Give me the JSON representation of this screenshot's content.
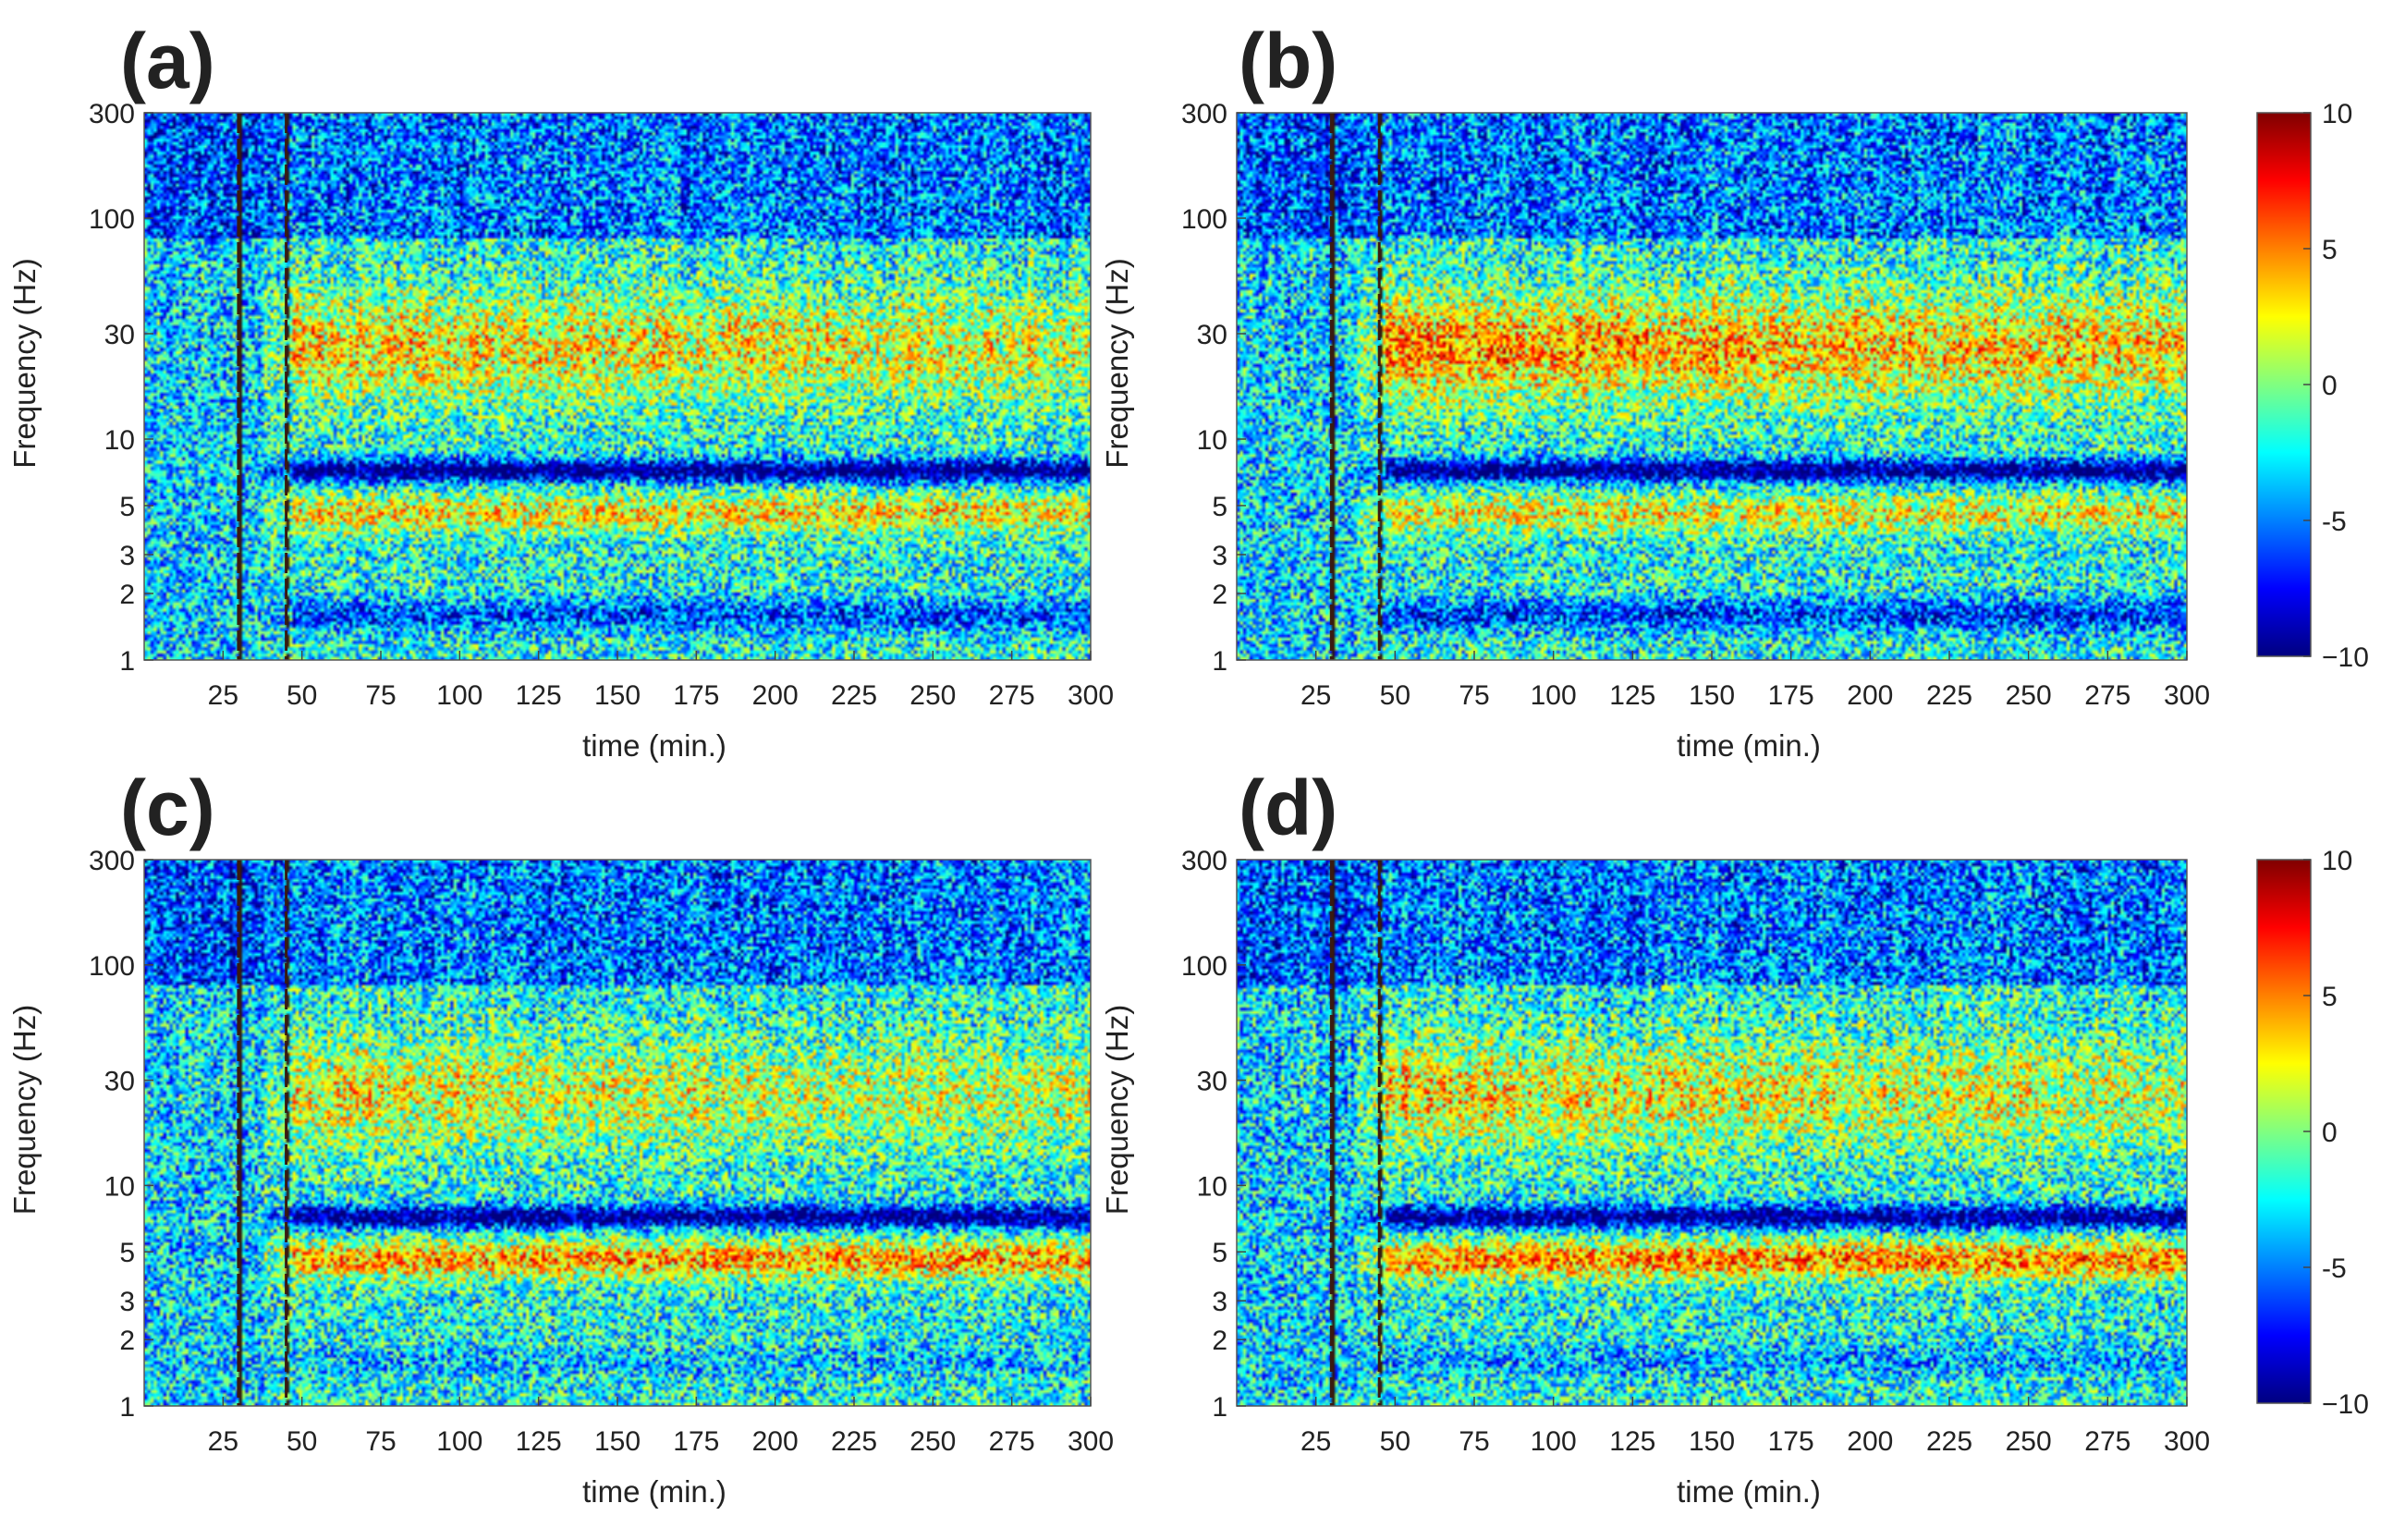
{
  "chart_data": [
    {
      "type": "heatmap",
      "panel_label": "(a)",
      "xlabel": "time (min.)",
      "ylabel": "Frequency (Hz)",
      "xlim": [
        0,
        300
      ],
      "ylim": [
        1,
        300
      ],
      "yscale": "log",
      "x_ticks": [
        "25",
        "50",
        "75",
        "100",
        "125",
        "150",
        "175",
        "200",
        "225",
        "250",
        "275",
        "300"
      ],
      "y_ticks": [
        "1",
        "2",
        "3",
        "5",
        "10",
        "30",
        "100",
        "300"
      ],
      "event_markers_min": [
        30,
        45
      ],
      "features": {
        "beta_peak": 5.5,
        "theta_peak": 5.0,
        "low_band": -4.0
      }
    },
    {
      "type": "heatmap",
      "panel_label": "(b)",
      "xlabel": "time (min.)",
      "ylabel": "Frequency (Hz)",
      "xlim": [
        0,
        300
      ],
      "ylim": [
        1,
        300
      ],
      "yscale": "log",
      "x_ticks": [
        "25",
        "50",
        "75",
        "100",
        "125",
        "150",
        "175",
        "200",
        "225",
        "250",
        "275",
        "300"
      ],
      "y_ticks": [
        "1",
        "2",
        "3",
        "5",
        "10",
        "30",
        "100",
        "300"
      ],
      "event_markers_min": [
        30,
        45
      ],
      "features": {
        "beta_peak": 7.0,
        "theta_peak": 4.5,
        "low_band": -4.5
      },
      "colorbar": {
        "min": -10,
        "max": 10,
        "ticks": [
          "10",
          "5",
          "0",
          "-5",
          "−10"
        ]
      }
    },
    {
      "type": "heatmap",
      "panel_label": "(c)",
      "xlabel": "time (min.)",
      "ylabel": "Frequency (Hz)",
      "xlim": [
        0,
        300
      ],
      "ylim": [
        1,
        300
      ],
      "yscale": "log",
      "x_ticks": [
        "25",
        "50",
        "75",
        "100",
        "125",
        "150",
        "175",
        "200",
        "225",
        "250",
        "275",
        "300"
      ],
      "y_ticks": [
        "1",
        "2",
        "3",
        "5",
        "10",
        "30",
        "100",
        "300"
      ],
      "event_markers_min": [
        30,
        45
      ],
      "features": {
        "beta_peak": 4.5,
        "theta_peak": 6.5,
        "low_band": -1.5
      }
    },
    {
      "type": "heatmap",
      "panel_label": "(d)",
      "xlabel": "time (min.)",
      "ylabel": "Frequency (Hz)",
      "xlim": [
        0,
        300
      ],
      "ylim": [
        1,
        300
      ],
      "yscale": "log",
      "x_ticks": [
        "25",
        "50",
        "75",
        "100",
        "125",
        "150",
        "175",
        "200",
        "225",
        "250",
        "275",
        "300"
      ],
      "y_ticks": [
        "1",
        "2",
        "3",
        "5",
        "10",
        "30",
        "100",
        "300"
      ],
      "event_markers_min": [
        30,
        45
      ],
      "features": {
        "beta_peak": 5.0,
        "theta_peak": 7.0,
        "low_band": -2.0
      },
      "colorbar": {
        "min": -10,
        "max": 10,
        "ticks": [
          "10",
          "5",
          "0",
          "-5",
          "−10"
        ]
      }
    }
  ]
}
